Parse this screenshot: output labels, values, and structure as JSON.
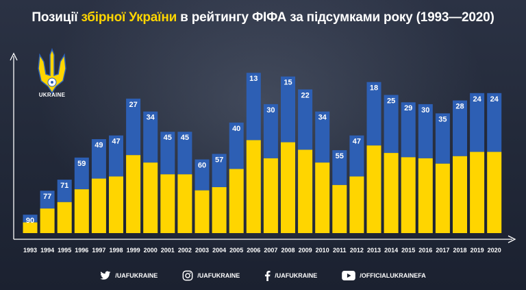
{
  "title": {
    "part1": "Позиції ",
    "part2": "збірної України",
    "part3": " в рейтингу ФІФА за підсумками року (1993—2020)"
  },
  "logo": {
    "caption": "UKRAINE"
  },
  "colors": {
    "bar_top": "#2d5fb4",
    "bar_bottom": "#ffd500",
    "axis": "#ffffff",
    "label_box": "#ffffff",
    "label_text": "#1f3f86"
  },
  "chart_data": {
    "type": "bar",
    "title": "Позиції збірної України в рейтингу ФІФА за підсумками року (1993—2020)",
    "categories": [
      "1993",
      "1994",
      "1995",
      "1996",
      "1997",
      "1998",
      "1999",
      "2000",
      "2001",
      "2002",
      "2003",
      "2004",
      "2005",
      "2006",
      "2007",
      "2008",
      "2009",
      "2010",
      "2011",
      "2012",
      "2013",
      "2014",
      "2015",
      "2016",
      "2017",
      "2018",
      "2019",
      "2020"
    ],
    "series": [
      {
        "values": [
          90,
          77,
          71,
          59,
          49,
          47,
          27,
          34,
          45,
          45,
          60,
          57,
          40,
          13,
          30,
          15,
          22,
          34,
          55,
          47,
          18,
          25,
          29,
          30,
          35,
          28,
          24,
          24
        ]
      }
    ]
  },
  "socials": [
    {
      "icon": "twitter-icon",
      "label": "/UAFUKRAINE"
    },
    {
      "icon": "instagram-icon",
      "label": "/UAFUKRAINE"
    },
    {
      "icon": "facebook-icon",
      "label": "/UAFUKRAINE"
    },
    {
      "icon": "youtube-icon",
      "label": "/OFFICIALUKRAINEFA"
    }
  ]
}
